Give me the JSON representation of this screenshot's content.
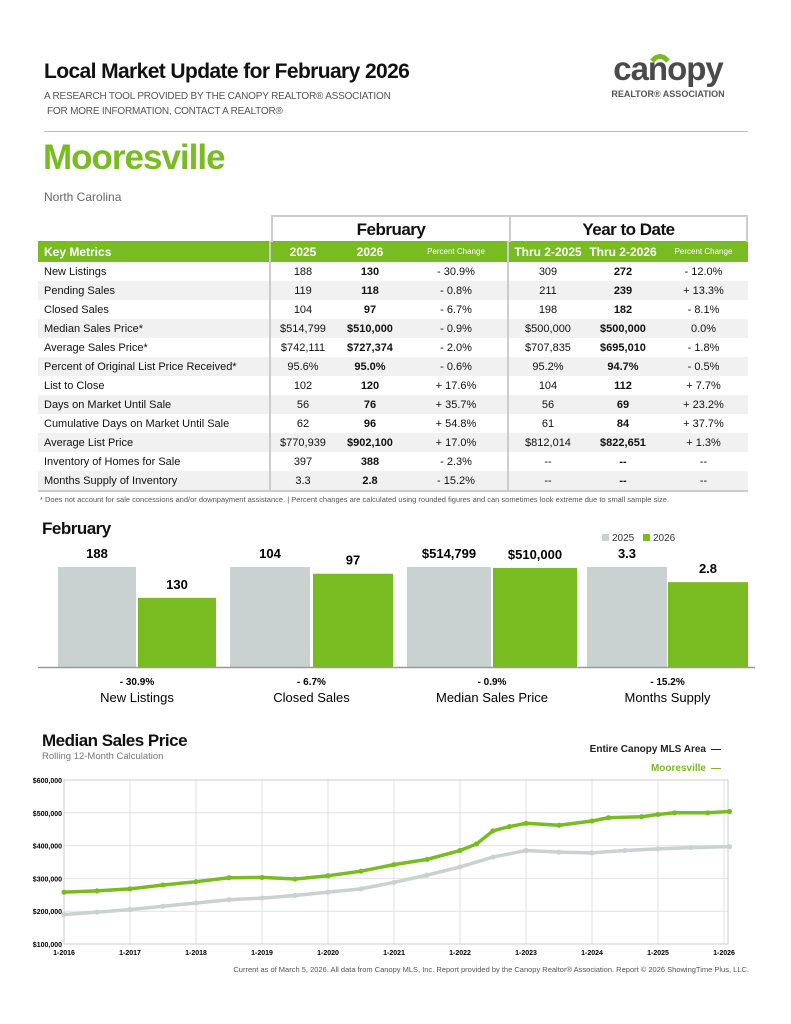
{
  "header": {
    "title": "Local Market Update for February 2026",
    "subtitle1": "A RESEARCH TOOL PROVIDED BY THE CANOPY REALTOR® ASSOCIATION",
    "subtitle2": "FOR MORE INFORMATION, CONTACT A REALTOR®",
    "logo_text": "canopy",
    "logo_sub": "REALTOR® ASSOCIATION"
  },
  "location": {
    "city": "Mooresville",
    "state": "North Carolina"
  },
  "colors": {
    "accent": "#78bc22",
    "gray_bar": "#c9d2d1",
    "header_border": "#cccccc"
  },
  "table": {
    "group_february": "February",
    "group_ytd": "Year to Date",
    "columns": [
      "Key Metrics",
      "2025",
      "2026",
      "Percent Change",
      "Thru 2-2025",
      "Thru 2-2026",
      "Percent Change"
    ],
    "rows": [
      [
        "New Listings",
        "188",
        "130",
        "- 30.9%",
        "309",
        "272",
        "- 12.0%"
      ],
      [
        "Pending Sales",
        "119",
        "118",
        "- 0.8%",
        "211",
        "239",
        "+ 13.3%"
      ],
      [
        "Closed Sales",
        "104",
        "97",
        "- 6.7%",
        "198",
        "182",
        "- 8.1%"
      ],
      [
        "Median Sales Price*",
        "$514,799",
        "$510,000",
        "- 0.9%",
        "$500,000",
        "$500,000",
        "0.0%"
      ],
      [
        "Average Sales Price*",
        "$742,111",
        "$727,374",
        "- 2.0%",
        "$707,835",
        "$695,010",
        "- 1.8%"
      ],
      [
        "Percent of Original List Price Received*",
        "95.6%",
        "95.0%",
        "- 0.6%",
        "95.2%",
        "94.7%",
        "- 0.5%"
      ],
      [
        "List to Close",
        "102",
        "120",
        "+ 17.6%",
        "104",
        "112",
        "+ 7.7%"
      ],
      [
        "Days on Market Until Sale",
        "56",
        "76",
        "+ 35.7%",
        "56",
        "69",
        "+ 23.2%"
      ],
      [
        "Cumulative Days on Market Until Sale",
        "62",
        "96",
        "+ 54.8%",
        "61",
        "84",
        "+ 37.7%"
      ],
      [
        "Average List Price",
        "$770,939",
        "$902,100",
        "+ 17.0%",
        "$812,014",
        "$822,651",
        "+ 1.3%"
      ],
      [
        "Inventory of Homes for Sale",
        "397",
        "388",
        "- 2.3%",
        "--",
        "--",
        "--"
      ],
      [
        "Months Supply of Inventory",
        "3.3",
        "2.8",
        "- 15.2%",
        "--",
        "--",
        "--"
      ]
    ],
    "footnote": "* Does not account for sale concessions and/or downpayment assistance.  |  Percent changes are calculated using rounded figures and can sometimes look extreme due to small sample size."
  },
  "chart_data": [
    {
      "type": "bar",
      "title": "February",
      "legend": [
        "2025",
        "2026"
      ],
      "legend_placement": "top-right",
      "groups": [
        {
          "category": "New Listings",
          "values": [
            188,
            130
          ],
          "labels": [
            "188",
            "130"
          ],
          "change": "- 30.9%"
        },
        {
          "category": "Closed Sales",
          "values": [
            104,
            97
          ],
          "labels": [
            "104",
            "97"
          ],
          "change": "- 6.7%"
        },
        {
          "category": "Median Sales Price",
          "values": [
            514799,
            510000
          ],
          "labels": [
            "$514,799",
            "$510,000"
          ],
          "change": "- 0.9%"
        },
        {
          "category": "Months Supply",
          "values": [
            3.3,
            2.8
          ],
          "labels": [
            "3.3",
            "2.8"
          ],
          "change": "- 15.2%"
        }
      ],
      "colors": [
        "#c9d2d1",
        "#78bc22"
      ]
    },
    {
      "type": "line",
      "title": "Median Sales Price",
      "subtitle": "Rolling 12-Month Calculation",
      "ylim": [
        100000,
        600000
      ],
      "yticks": [
        "$100,000",
        "$200,000",
        "$300,000",
        "$400,000",
        "$500,000",
        "$600,000"
      ],
      "xticks": [
        "1-2016",
        "1-2017",
        "1-2018",
        "1-2019",
        "1-2020",
        "1-2021",
        "1-2022",
        "1-2023",
        "1-2024",
        "1-2025",
        "1-2026"
      ],
      "grid": true,
      "legend_placement": "top-right",
      "series": [
        {
          "name": "Entire Canopy MLS Area",
          "legend_mark": "—",
          "color": "#c9d2d1",
          "points": [
            [
              "2016-01",
              190000
            ],
            [
              "2016-07",
              197000
            ],
            [
              "2017-01",
              205000
            ],
            [
              "2017-07",
              215000
            ],
            [
              "2018-01",
              225000
            ],
            [
              "2018-07",
              235000
            ],
            [
              "2019-01",
              240000
            ],
            [
              "2019-07",
              248000
            ],
            [
              "2020-01",
              258000
            ],
            [
              "2020-07",
              268000
            ],
            [
              "2021-01",
              288000
            ],
            [
              "2021-07",
              310000
            ],
            [
              "2022-01",
              335000
            ],
            [
              "2022-07",
              365000
            ],
            [
              "2023-01",
              385000
            ],
            [
              "2023-07",
              380000
            ],
            [
              "2024-01",
              378000
            ],
            [
              "2024-07",
              385000
            ],
            [
              "2025-01",
              390000
            ],
            [
              "2025-07",
              394000
            ],
            [
              "2026-02",
              397000
            ]
          ]
        },
        {
          "name": "Mooresville",
          "legend_mark": "—",
          "color": "#78bc22",
          "points": [
            [
              "2016-01",
              258000
            ],
            [
              "2016-07",
              262000
            ],
            [
              "2017-01",
              268000
            ],
            [
              "2017-07",
              280000
            ],
            [
              "2018-01",
              290000
            ],
            [
              "2018-07",
              302000
            ],
            [
              "2019-01",
              303000
            ],
            [
              "2019-07",
              298000
            ],
            [
              "2020-01",
              308000
            ],
            [
              "2020-07",
              322000
            ],
            [
              "2021-01",
              342000
            ],
            [
              "2021-07",
              358000
            ],
            [
              "2022-01",
              385000
            ],
            [
              "2022-04",
              405000
            ],
            [
              "2022-07",
              445000
            ],
            [
              "2022-10",
              458000
            ],
            [
              "2023-01",
              468000
            ],
            [
              "2023-07",
              462000
            ],
            [
              "2024-01",
              475000
            ],
            [
              "2024-04",
              485000
            ],
            [
              "2024-10",
              488000
            ],
            [
              "2025-01",
              495000
            ],
            [
              "2025-04",
              500000
            ],
            [
              "2025-10",
              500000
            ],
            [
              "2026-02",
              504000
            ]
          ]
        }
      ]
    }
  ],
  "footer": "Current as of March 5, 2026. All data from Canopy MLS, Inc. Report provided by the Canopy Realtor® Association. Report © 2026 ShowingTime Plus, LLC."
}
